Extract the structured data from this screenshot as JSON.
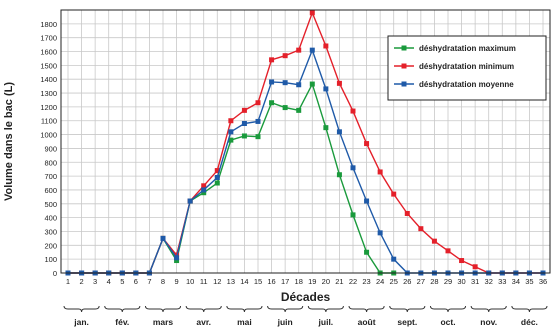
{
  "chart_data": {
    "type": "line",
    "xlabel": "Décades",
    "ylabel": "Volume dans le bac (L)",
    "ylim": [
      0,
      1900
    ],
    "ytick_step": 100,
    "yticks_from": 0,
    "yticks_to": 1800,
    "grid": true,
    "legend_position": "top-right",
    "x": [
      1,
      2,
      3,
      4,
      5,
      6,
      7,
      8,
      9,
      10,
      11,
      12,
      13,
      14,
      15,
      16,
      17,
      18,
      19,
      20,
      21,
      22,
      23,
      24,
      25,
      26,
      27,
      28,
      29,
      30,
      31,
      32,
      33,
      34,
      35,
      36
    ],
    "months": [
      "jan.",
      "fév.",
      "mars",
      "avr.",
      "mai",
      "juin",
      "juil.",
      "août",
      "sept.",
      "oct.",
      "nov.",
      "déc."
    ],
    "series": [
      {
        "name": "déshydratation maximum",
        "color": "#1a9a3c",
        "marker": "square",
        "values": [
          0,
          0,
          0,
          0,
          0,
          0,
          0,
          250,
          90,
          520,
          580,
          650,
          960,
          990,
          985,
          1230,
          1195,
          1175,
          1365,
          1050,
          710,
          420,
          150,
          0,
          0,
          null,
          null,
          null,
          null,
          null,
          null,
          null,
          null,
          null,
          null,
          null
        ]
      },
      {
        "name": "déshydratation minimum",
        "color": "#e4202a",
        "marker": "square",
        "values": [
          0,
          0,
          0,
          0,
          0,
          0,
          0,
          250,
          130,
          520,
          630,
          740,
          1100,
          1175,
          1230,
          1540,
          1570,
          1610,
          1880,
          1640,
          1370,
          1170,
          935,
          730,
          570,
          430,
          320,
          230,
          160,
          90,
          45,
          0,
          0,
          0,
          0,
          0
        ]
      },
      {
        "name": "déshydratation moyenne",
        "color": "#1f5aa8",
        "marker": "square",
        "values": [
          0,
          0,
          0,
          0,
          0,
          0,
          0,
          250,
          110,
          520,
          600,
          690,
          1020,
          1080,
          1095,
          1380,
          1375,
          1360,
          1610,
          1330,
          1020,
          760,
          520,
          290,
          100,
          0,
          0,
          0,
          0,
          0,
          0,
          0,
          0,
          0,
          0,
          0
        ]
      }
    ]
  }
}
